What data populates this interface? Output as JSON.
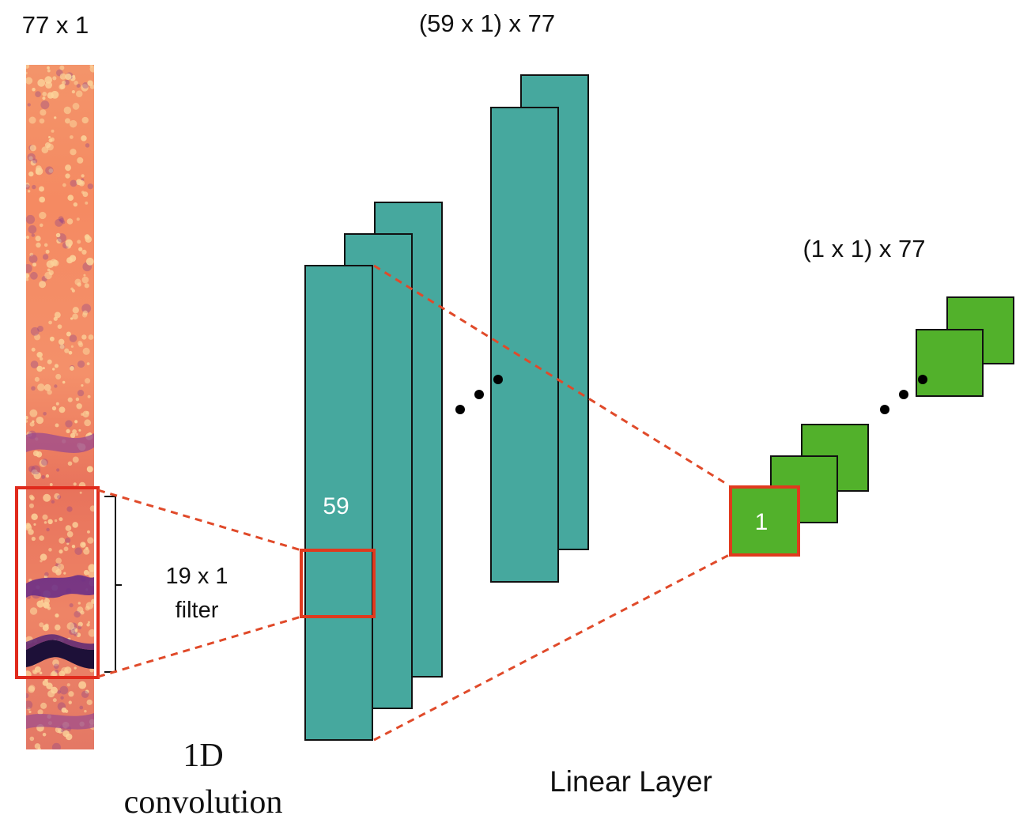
{
  "labels": {
    "input_size": "77 x 1",
    "conv_output_size": "(59 x 1) x 77",
    "linear_output_size": "(1 x 1) x 77",
    "filter_size": "19 x 1",
    "filter_word": "filter",
    "conv_title_line1": "1D",
    "conv_title_line2": "convolution",
    "feature_length": "59",
    "linear_unit": "1",
    "linear_layer": "Linear Layer"
  },
  "colors": {
    "feature_map": "#46a89e",
    "linear_unit": "#52b12b",
    "highlight": "#e03a1e",
    "dots": "#000000",
    "heatmap_base": "#f08a66",
    "heatmap_light": "#fbd39a",
    "heatmap_purple": "#8a3f8d",
    "heatmap_dark": "#1d1038"
  }
}
